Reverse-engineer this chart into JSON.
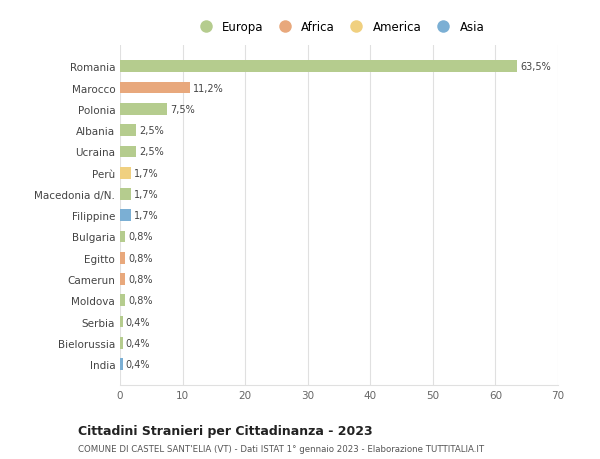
{
  "categories": [
    "Romania",
    "Marocco",
    "Polonia",
    "Albania",
    "Ucraina",
    "Perù",
    "Macedonia d/N.",
    "Filippine",
    "Bulgaria",
    "Egitto",
    "Camerun",
    "Moldova",
    "Serbia",
    "Bielorussia",
    "India"
  ],
  "values": [
    63.5,
    11.2,
    7.5,
    2.5,
    2.5,
    1.7,
    1.7,
    1.7,
    0.8,
    0.8,
    0.8,
    0.8,
    0.4,
    0.4,
    0.4
  ],
  "labels": [
    "63,5%",
    "11,2%",
    "7,5%",
    "2,5%",
    "2,5%",
    "1,7%",
    "1,7%",
    "1,7%",
    "0,8%",
    "0,8%",
    "0,8%",
    "0,8%",
    "0,4%",
    "0,4%",
    "0,4%"
  ],
  "colors": [
    "#b5cc8e",
    "#e8a87c",
    "#b5cc8e",
    "#b5cc8e",
    "#b5cc8e",
    "#f0d080",
    "#b5cc8e",
    "#7bafd4",
    "#b5cc8e",
    "#e8a87c",
    "#e8a87c",
    "#b5cc8e",
    "#b5cc8e",
    "#b5cc8e",
    "#7bafd4"
  ],
  "legend_labels": [
    "Europa",
    "Africa",
    "America",
    "Asia"
  ],
  "legend_colors": [
    "#b5cc8e",
    "#e8a87c",
    "#f0d080",
    "#7bafd4"
  ],
  "title": "Cittadini Stranieri per Cittadinanza - 2023",
  "subtitle": "COMUNE DI CASTEL SANT'ELIA (VT) - Dati ISTAT 1° gennaio 2023 - Elaborazione TUTTITALIA.IT",
  "xlim": [
    0,
    70
  ],
  "xticks": [
    0,
    10,
    20,
    30,
    40,
    50,
    60,
    70
  ],
  "bg_color": "#ffffff",
  "grid_color": "#e0e0e0",
  "bar_height": 0.55
}
